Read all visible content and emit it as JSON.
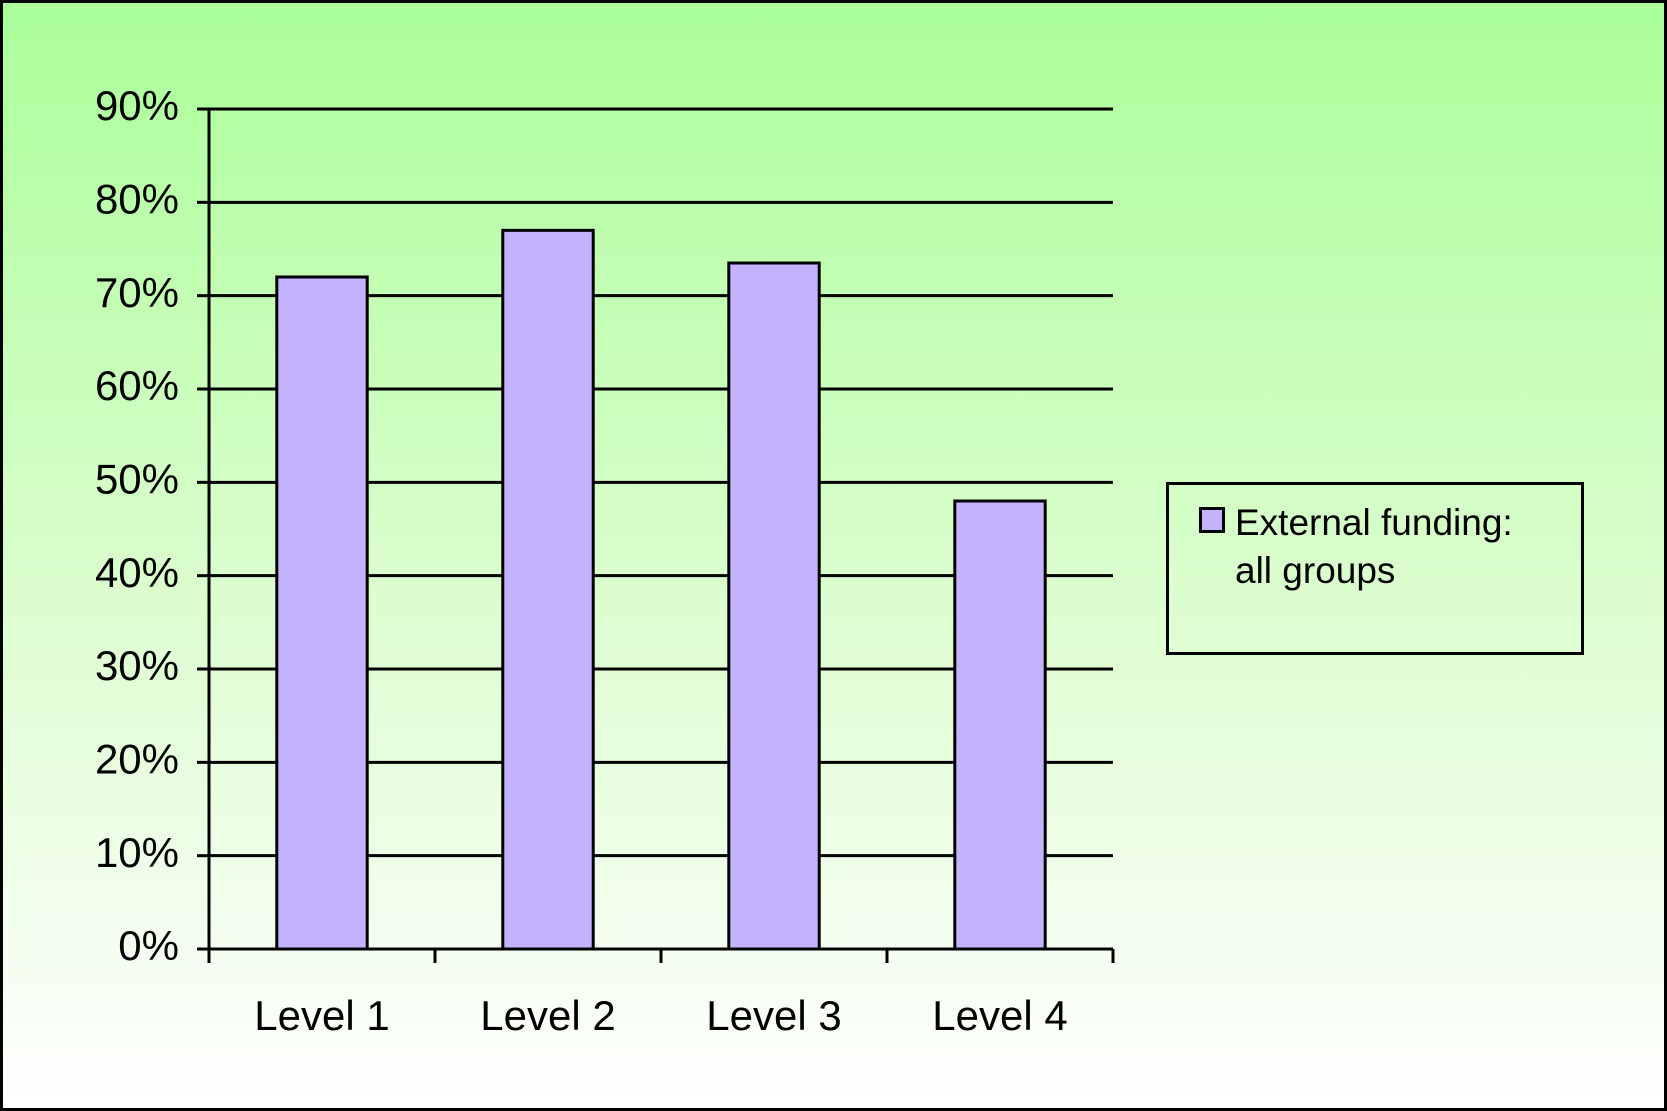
{
  "chart_data": {
    "type": "bar",
    "categories": [
      "Level 1",
      "Level 2",
      "Level 3",
      "Level 4"
    ],
    "series": [
      {
        "name": "External funding: all groups",
        "color": "#c4b4ff",
        "values": [
          72,
          77,
          73.5,
          48
        ]
      }
    ],
    "ylim": [
      0,
      90
    ],
    "yticks": [
      {
        "value": 0,
        "label": "0%"
      },
      {
        "value": 10,
        "label": "10%"
      },
      {
        "value": 20,
        "label": "20%"
      },
      {
        "value": 30,
        "label": "30%"
      },
      {
        "value": 40,
        "label": "40%"
      },
      {
        "value": 50,
        "label": "50%"
      },
      {
        "value": 60,
        "label": "60%"
      },
      {
        "value": 70,
        "label": "70%"
      },
      {
        "value": 80,
        "label": "80%"
      },
      {
        "value": 90,
        "label": "90%"
      }
    ],
    "grid": true,
    "legend": "right"
  }
}
